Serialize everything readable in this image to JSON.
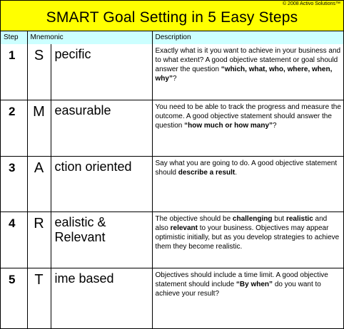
{
  "banner": {
    "copyright": "© 2008 Activo Solutions™",
    "title": "SMART Goal Setting in 5 Easy Steps"
  },
  "headers": {
    "step": "Step",
    "mnemonic": "Mnemonic",
    "description": "Description"
  },
  "rows": [
    {
      "step": "1",
      "letter": "S",
      "word": "pecific",
      "desc": [
        {
          "t": "Exactly what is it you want to achieve in your business and to what extent?  A good objective statement or goal should answer the question "
        },
        {
          "t": "“which, what, who, where, when, why”",
          "b": true
        },
        {
          "t": "?"
        }
      ]
    },
    {
      "step": "2",
      "letter": "M",
      "word": "easurable",
      "desc": [
        {
          "t": "You need to be able to track the progress and measure the outcome.  A good objective statement should answer the question "
        },
        {
          "t": "“how much or how many”",
          "b": true
        },
        {
          "t": "?"
        }
      ]
    },
    {
      "step": "3",
      "letter": "A",
      "word": "ction oriented",
      "desc": [
        {
          "t": "Say what you are going to do.  A good objective statement should "
        },
        {
          "t": "describe a result",
          "b": true
        },
        {
          "t": "."
        }
      ]
    },
    {
      "step": "4",
      "letter": "R",
      "word": "ealistic & Relevant",
      "desc": [
        {
          "t": "The objective should be "
        },
        {
          "t": "challenging",
          "b": true
        },
        {
          "t": " but "
        },
        {
          "t": "realistic",
          "b": true
        },
        {
          "t": " and also "
        },
        {
          "t": "relevant",
          "b": true
        },
        {
          "t": " to your business.  Objectives may appear optimistic initially, but as you develop strategies to achieve them they become realistic."
        }
      ]
    },
    {
      "step": "5",
      "letter": "T",
      "word": "ime based",
      "desc": [
        {
          "t": "Objectives should include a time limit.  A good objective statement should include "
        },
        {
          "t": "“By when”",
          "b": true
        },
        {
          "t": " do you want to achieve your result?"
        }
      ]
    }
  ],
  "colors": {
    "banner_bg": "#ffff00",
    "header_bg": "#ccffff",
    "border": "#000000"
  }
}
